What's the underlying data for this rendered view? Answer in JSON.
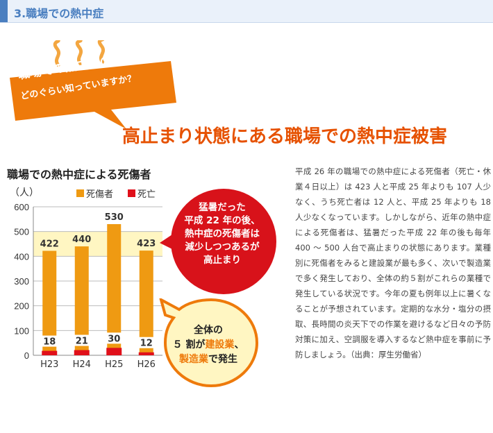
{
  "header": {
    "title": "3.職場での熱中症"
  },
  "bubble": {
    "line1": "職場での熱中症のこと、",
    "line2": "どのぐらい知っていますか？"
  },
  "headline": "高止まり状態にある職場での熱中症被害",
  "chart_title": "職場での熱中症による死傷者",
  "chart_data": {
    "type": "bar",
    "title": "職場での熱中症による死傷者",
    "ylabel": "（人）",
    "xlabel": "",
    "categories": [
      "H23",
      "H24",
      "H25",
      "H26"
    ],
    "series": [
      {
        "name": "死傷者",
        "values": [
          422,
          440,
          530,
          423
        ],
        "color": "#ef9a12"
      },
      {
        "name": "死亡",
        "values": [
          18,
          21,
          30,
          12
        ],
        "color": "#e0101a"
      }
    ],
    "ylim": [
      0,
      600
    ],
    "yticks": [
      "0",
      "100",
      "200",
      "300",
      "400",
      "500",
      "600"
    ],
    "highlight_band": [
      400,
      500
    ],
    "grid": true,
    "legend": "top"
  },
  "red_callout": {
    "lines": [
      "猛暑だった",
      "平成 22 年の後、",
      "熱中症の死傷者は",
      "減少しつつあるが",
      "高止まり"
    ]
  },
  "cream_callout": {
    "line1": "全体の",
    "line2_a": "５ 割が",
    "line2_b": "建設業",
    "line2_c": "、",
    "line3_a": "製造業",
    "line3_b": "で発生"
  },
  "body": "平成 26 年の職場での熱中症による死傷者（死亡・休業４日以上）は 423 人と平成 25 年よりも 107 人少なく、うち死亡者は 12 人と、平成 25 年よりも 18 人少なくなっています。しかしながら、近年の熱中症による死傷者は、猛暑だった平成 22 年の後も毎年 400 〜 500 人台で高止まりの状態にあります。業種別に死傷者をみると建設業が最も多く、次いで製造業で多く発生しており、全体の約５割がこれらの業種で発生している状況です。今年の夏も例年以上に暑くなることが予想されています。定期的な水分・塩分の摂取、長時間の炎天下での作業を避けるなど日々の予防対策に加え、空調服を導入するなど熱中症を事前に予防しましょう。（出典：厚生労働省）",
  "colors": {
    "orange": "#ee7a0b",
    "red": "#d8121a",
    "blue": "#4a7fc0",
    "cream": "#fff6c2"
  }
}
